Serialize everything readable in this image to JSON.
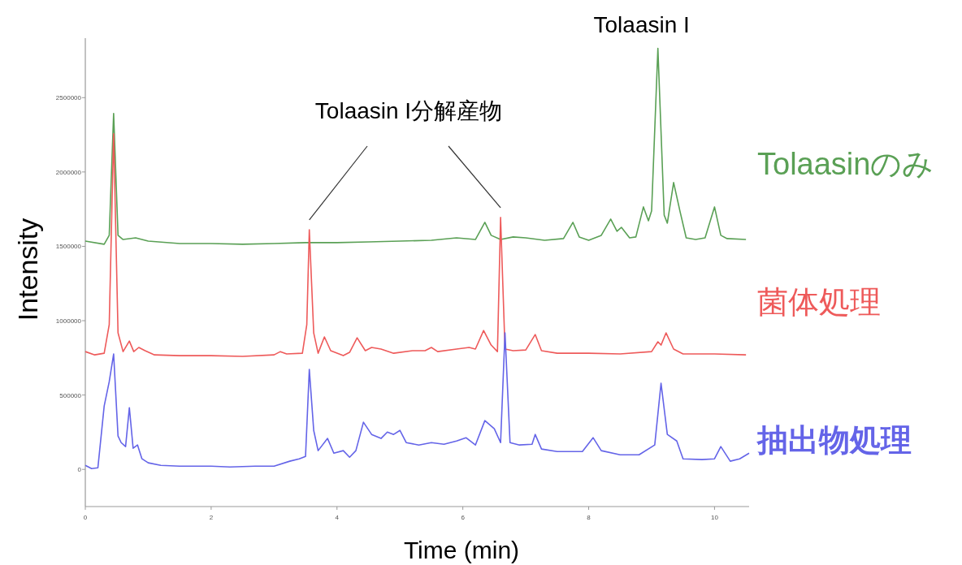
{
  "chart_data": {
    "type": "line",
    "xlabel": "Time (min)",
    "ylabel": "Intensity",
    "xlim": [
      0,
      10.55
    ],
    "ylim": [
      -250000,
      2900000
    ],
    "xticks": [
      0,
      2,
      4,
      6,
      8,
      10
    ],
    "yticks": [
      0,
      500000,
      1000000,
      1500000,
      2000000,
      2500000
    ],
    "grid": false,
    "marker": "none",
    "line_style": "solid",
    "annotations": [
      {
        "text": "Tolaasin I",
        "x": 9.1,
        "y": 2831000
      },
      "Tolaasin I分解産物"
    ],
    "series": [
      {
        "name": "Tolaasinのみ",
        "color": "#5aa055",
        "x": [
          0,
          0.3,
          0.38,
          0.45,
          0.52,
          0.6,
          0.8,
          1.0,
          1.5,
          2,
          2.5,
          3,
          3.5,
          4,
          4.5,
          5,
          5.5,
          5.9,
          6.2,
          6.35,
          6.45,
          6.6,
          6.8,
          7.0,
          7.3,
          7.6,
          7.75,
          7.85,
          8.0,
          8.2,
          8.35,
          8.45,
          8.52,
          8.65,
          8.75,
          8.87,
          8.95,
          9.0,
          9.1,
          9.2,
          9.25,
          9.35,
          9.45,
          9.55,
          9.7,
          9.85,
          10.0,
          10.1,
          10.2,
          10.5
        ],
        "values": [
          1535000,
          1514000,
          1574000,
          2393000,
          1574000,
          1546000,
          1557000,
          1535000,
          1519000,
          1519000,
          1514000,
          1519000,
          1525000,
          1525000,
          1530000,
          1535000,
          1541000,
          1557000,
          1546000,
          1661000,
          1574000,
          1546000,
          1563000,
          1557000,
          1541000,
          1552000,
          1661000,
          1563000,
          1541000,
          1574000,
          1683000,
          1601000,
          1628000,
          1557000,
          1563000,
          1765000,
          1672000,
          1738000,
          2831000,
          1710000,
          1656000,
          1929000,
          1738000,
          1557000,
          1546000,
          1557000,
          1765000,
          1574000,
          1552000,
          1546000
        ]
      },
      {
        "name": "菌体処理",
        "color": "#ee5a5a",
        "x": [
          0,
          0.15,
          0.3,
          0.38,
          0.45,
          0.52,
          0.6,
          0.7,
          0.77,
          0.85,
          0.95,
          1.1,
          1.5,
          2,
          2.5,
          3.0,
          3.1,
          3.2,
          3.45,
          3.52,
          3.56,
          3.63,
          3.7,
          3.8,
          3.9,
          4.1,
          4.2,
          4.32,
          4.45,
          4.55,
          4.7,
          4.9,
          5.2,
          5.4,
          5.5,
          5.6,
          5.9,
          6.1,
          6.2,
          6.33,
          6.45,
          6.55,
          6.6,
          6.67,
          6.8,
          7.0,
          7.15,
          7.25,
          7.5,
          8.0,
          8.5,
          9.0,
          9.1,
          9.15,
          9.23,
          9.35,
          9.5,
          10,
          10.5
        ],
        "values": [
          792000,
          770000,
          781000,
          973000,
          2257000,
          918000,
          792000,
          863000,
          792000,
          820000,
          798000,
          770000,
          765000,
          765000,
          760000,
          770000,
          792000,
          776000,
          781000,
          973000,
          1612000,
          918000,
          781000,
          891000,
          798000,
          765000,
          787000,
          885000,
          798000,
          820000,
          809000,
          781000,
          798000,
          798000,
          820000,
          792000,
          809000,
          820000,
          809000,
          934000,
          836000,
          792000,
          1694000,
          809000,
          798000,
          803000,
          907000,
          798000,
          781000,
          781000,
          776000,
          792000,
          858000,
          836000,
          918000,
          809000,
          776000,
          776000,
          770000
        ]
      },
      {
        "name": "抽出物処理",
        "color": "#6464e8",
        "x": [
          0,
          0.1,
          0.2,
          0.3,
          0.38,
          0.45,
          0.52,
          0.57,
          0.64,
          0.7,
          0.76,
          0.83,
          0.9,
          1.0,
          1.2,
          1.5,
          2,
          2.3,
          2.7,
          3.0,
          3.25,
          3.4,
          3.5,
          3.56,
          3.63,
          3.7,
          3.85,
          3.95,
          4.1,
          4.2,
          4.3,
          4.42,
          4.55,
          4.7,
          4.8,
          4.9,
          5.0,
          5.1,
          5.3,
          5.5,
          5.7,
          5.9,
          6.05,
          6.2,
          6.35,
          6.5,
          6.6,
          6.67,
          6.75,
          6.9,
          7.1,
          7.15,
          7.25,
          7.5,
          7.9,
          8.07,
          8.2,
          8.5,
          8.8,
          9.05,
          9.15,
          9.25,
          9.4,
          9.5,
          9.8,
          10.0,
          10.1,
          10.25,
          10.4,
          10.55
        ],
        "values": [
          27000,
          5000,
          11000,
          426000,
          590000,
          776000,
          224000,
          180000,
          153000,
          415000,
          142000,
          164000,
          71000,
          44000,
          27000,
          22000,
          22000,
          16000,
          22000,
          22000,
          55000,
          71000,
          87000,
          672000,
          262000,
          126000,
          208000,
          109000,
          126000,
          82000,
          126000,
          317000,
          235000,
          208000,
          251000,
          235000,
          262000,
          180000,
          164000,
          180000,
          169000,
          191000,
          213000,
          164000,
          328000,
          273000,
          180000,
          918000,
          180000,
          164000,
          169000,
          235000,
          137000,
          120000,
          120000,
          213000,
          126000,
          98000,
          98000,
          164000,
          579000,
          235000,
          191000,
          71000,
          66000,
          71000,
          153000,
          55000,
          71000,
          109000
        ]
      }
    ]
  }
}
